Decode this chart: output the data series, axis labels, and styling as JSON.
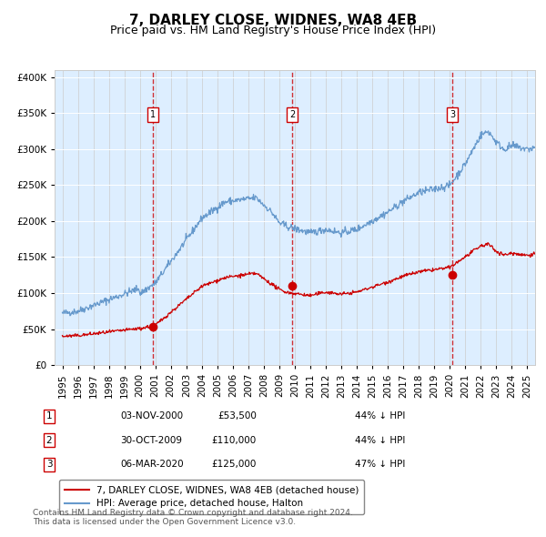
{
  "title": "7, DARLEY CLOSE, WIDNES, WA8 4EB",
  "subtitle": "Price paid vs. HM Land Registry's House Price Index (HPI)",
  "legend_red": "7, DARLEY CLOSE, WIDNES, WA8 4EB (detached house)",
  "legend_blue": "HPI: Average price, detached house, Halton",
  "transactions": [
    {
      "label": "1",
      "date": "03-NOV-2000",
      "price": 53500,
      "pct": "44%",
      "dir": "↓",
      "x_year": 2000.84
    },
    {
      "label": "2",
      "date": "30-OCT-2009",
      "price": 110000,
      "pct": "44%",
      "dir": "↓",
      "x_year": 2009.83
    },
    {
      "label": "3",
      "date": "06-MAR-2020",
      "price": 125000,
      "pct": "47%",
      "dir": "↓",
      "x_year": 2020.18
    }
  ],
  "footer": "Contains HM Land Registry data © Crown copyright and database right 2024.\nThis data is licensed under the Open Government Licence v3.0.",
  "red_color": "#cc0000",
  "blue_color": "#6699cc",
  "bg_color": "#ddeeff",
  "ylim": [
    0,
    420000
  ],
  "xlim_start": 1994.5,
  "xlim_end": 2025.5
}
